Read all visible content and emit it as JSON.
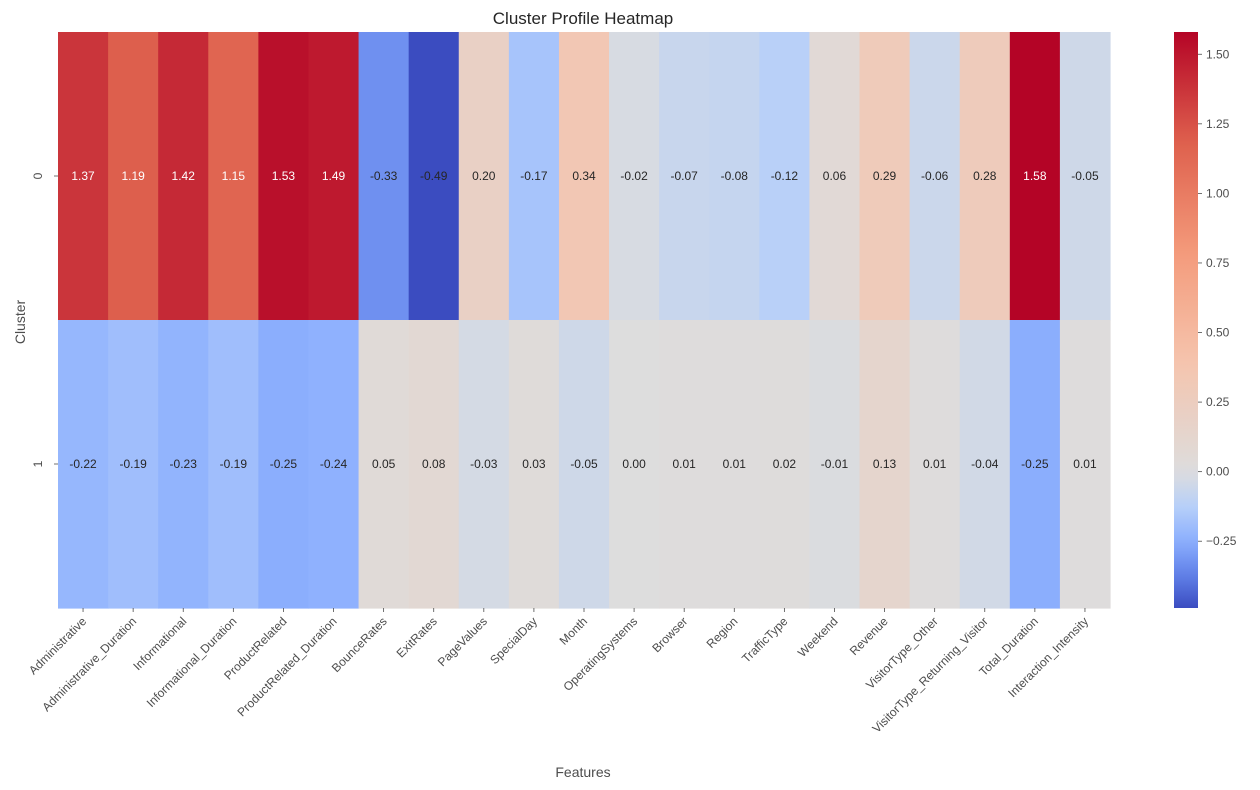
{
  "chart_data": {
    "type": "heatmap",
    "title": "Cluster Profile Heatmap",
    "xlabel": "Features",
    "ylabel": "Cluster",
    "x_categories": [
      "Administrative",
      "Administrative_Duration",
      "Informational",
      "Informational_Duration",
      "ProductRelated",
      "ProductRelated_Duration",
      "BounceRates",
      "ExitRates",
      "PageValues",
      "SpecialDay",
      "Month",
      "OperatingSystems",
      "Browser",
      "Region",
      "TrafficType",
      "Weekend",
      "Revenue",
      "VisitorType_Other",
      "VisitorType_Returning_Visitor",
      "Total_Duration",
      "Interaction_Intensity"
    ],
    "y_categories": [
      "0",
      "1"
    ],
    "values": [
      [
        1.37,
        1.19,
        1.42,
        1.15,
        1.53,
        1.49,
        -0.33,
        -0.49,
        0.2,
        -0.17,
        0.34,
        -0.02,
        -0.07,
        -0.08,
        -0.12,
        0.06,
        0.29,
        -0.06,
        0.28,
        1.58,
        -0.05
      ],
      [
        -0.22,
        -0.19,
        -0.23,
        -0.19,
        -0.25,
        -0.24,
        0.05,
        0.08,
        -0.03,
        0.03,
        -0.05,
        0.0,
        0.01,
        0.01,
        0.02,
        -0.01,
        0.13,
        0.01,
        -0.04,
        -0.25,
        0.01
      ]
    ],
    "colormap": "coolwarm",
    "color_center": 0,
    "color_range": [
      -0.49,
      1.58
    ],
    "colorbar_ticks": [
      "1.50",
      "1.25",
      "1.00",
      "0.75",
      "0.50",
      "0.25",
      "0.00",
      "−0.25"
    ],
    "colorbar_tick_values": [
      1.5,
      1.25,
      1.0,
      0.75,
      0.5,
      0.25,
      0.0,
      -0.25
    ]
  }
}
